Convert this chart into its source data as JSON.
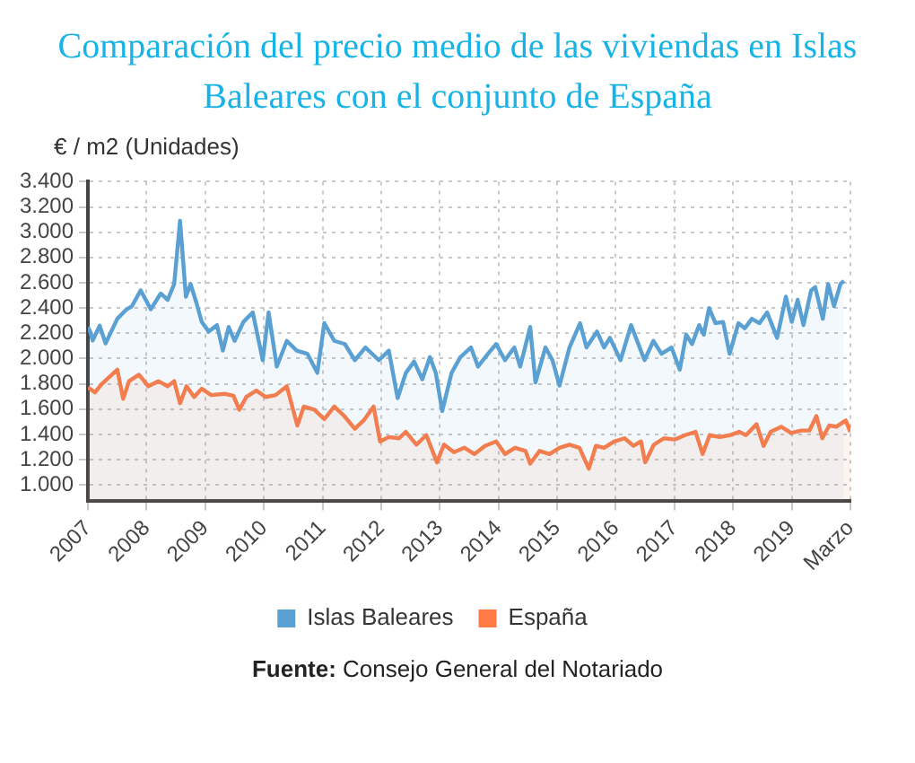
{
  "chart_data": {
    "type": "area",
    "title": "Comparación del precio medio de las viviendas en Islas Baleares con el conjunto de España",
    "ylabel": "€ / m2 (Unidades)",
    "annotations": [
      "Fuente: Consejo General del Notariado"
    ],
    "xlim": [
      2007,
      2020
    ],
    "xticks": [
      2007,
      2008,
      2009,
      2010,
      2011,
      2012,
      2013,
      2014,
      2015,
      2016,
      2017,
      2018,
      2019,
      {
        "value": 2020,
        "label": "Marzo"
      }
    ],
    "ylim": [
      870,
      3400
    ],
    "yticks": [
      {
        "value": 1000,
        "label": "1.000"
      },
      {
        "value": 1200,
        "label": "1.200"
      },
      {
        "value": 1400,
        "label": "1.400"
      },
      {
        "value": 1600,
        "label": "1.600"
      },
      {
        "value": 1800,
        "label": "1.800"
      },
      {
        "value": 2000,
        "label": "2.000"
      },
      {
        "value": 2200,
        "label": "2.200"
      },
      {
        "value": 2400,
        "label": "2.400"
      },
      {
        "value": 2600,
        "label": "2.600"
      },
      {
        "value": 2800,
        "label": "2.800"
      },
      {
        "value": 3000,
        "label": "3.000"
      },
      {
        "value": 3200,
        "label": "3.200"
      },
      {
        "value": 3400,
        "label": "3.400"
      }
    ],
    "grid": true,
    "legend": "bottom",
    "marker": "none",
    "line_style": "solid",
    "series": [
      {
        "name": "Islas Baleares",
        "color": "#5aa0d2",
        "x": [
          2007.0,
          2007.04,
          2007.08,
          2007.2,
          2007.3,
          2007.5,
          2007.66,
          2007.75,
          2007.9,
          2008.07,
          2008.24,
          2008.36,
          2008.47,
          2008.57,
          2008.67,
          2008.75,
          2008.85,
          2008.94,
          2009.06,
          2009.2,
          2009.3,
          2009.4,
          2009.5,
          2009.65,
          2009.81,
          2009.98,
          2010.08,
          2010.22,
          2010.39,
          2010.56,
          2010.74,
          2010.91,
          2011.03,
          2011.2,
          2011.38,
          2011.55,
          2011.73,
          2011.96,
          2012.13,
          2012.28,
          2012.42,
          2012.56,
          2012.7,
          2012.83,
          2012.93,
          2013.04,
          2013.2,
          2013.35,
          2013.53,
          2013.65,
          2013.82,
          2013.96,
          2014.11,
          2014.27,
          2014.37,
          2014.54,
          2014.63,
          2014.8,
          2014.92,
          2015.04,
          2015.21,
          2015.39,
          2015.5,
          2015.68,
          2015.8,
          2015.9,
          2016.08,
          2016.26,
          2016.49,
          2016.64,
          2016.78,
          2016.95,
          2017.09,
          2017.2,
          2017.3,
          2017.42,
          2017.5,
          2017.59,
          2017.7,
          2017.83,
          2017.94,
          2018.09,
          2018.2,
          2018.32,
          2018.45,
          2018.58,
          2018.75,
          2018.9,
          2019.0,
          2019.1,
          2019.2,
          2019.33,
          2019.4,
          2019.53,
          2019.62,
          2019.72,
          2019.83,
          2019.89
        ],
        "values": [
          2250,
          2210,
          2143,
          2260,
          2120,
          2315,
          2390,
          2415,
          2540,
          2390,
          2515,
          2465,
          2590,
          3090,
          2490,
          2590,
          2440,
          2290,
          2214,
          2265,
          2063,
          2250,
          2140,
          2290,
          2365,
          1987,
          2365,
          1937,
          2140,
          2063,
          2038,
          1887,
          2280,
          2140,
          2115,
          1987,
          2088,
          1987,
          2063,
          1686,
          1887,
          1977,
          1836,
          2012,
          1887,
          1585,
          1887,
          2012,
          2088,
          1937,
          2038,
          2115,
          1987,
          2088,
          1937,
          2250,
          1811,
          2088,
          1987,
          1786,
          2088,
          2280,
          2088,
          2214,
          2088,
          2164,
          1987,
          2265,
          1987,
          2140,
          2038,
          2088,
          1912,
          2190,
          2115,
          2265,
          2190,
          2400,
          2280,
          2290,
          2038,
          2280,
          2240,
          2315,
          2280,
          2365,
          2164,
          2490,
          2290,
          2465,
          2265,
          2540,
          2565,
          2315,
          2590,
          2415,
          2590,
          2615
        ]
      },
      {
        "name": "España",
        "color": "#ff7a45",
        "x": [
          2007.0,
          2007.12,
          2007.23,
          2007.5,
          2007.6,
          2007.7,
          2007.87,
          2008.03,
          2008.2,
          2008.36,
          2008.47,
          2008.57,
          2008.68,
          2008.81,
          2008.94,
          2009.1,
          2009.33,
          2009.48,
          2009.58,
          2009.7,
          2009.87,
          2010.03,
          2010.2,
          2010.39,
          2010.57,
          2010.68,
          2010.86,
          2011.03,
          2011.2,
          2011.37,
          2011.55,
          2011.7,
          2011.87,
          2011.98,
          2012.13,
          2012.3,
          2012.42,
          2012.6,
          2012.77,
          2012.95,
          2013.07,
          2013.24,
          2013.42,
          2013.59,
          2013.77,
          2013.96,
          2014.11,
          2014.28,
          2014.46,
          2014.54,
          2014.7,
          2014.87,
          2015.04,
          2015.21,
          2015.38,
          2015.54,
          2015.66,
          2015.8,
          2015.97,
          2016.15,
          2016.3,
          2016.43,
          2016.5,
          2016.65,
          2016.82,
          2017.0,
          2017.18,
          2017.36,
          2017.48,
          2017.6,
          2017.77,
          2017.95,
          2018.1,
          2018.22,
          2018.4,
          2018.52,
          2018.64,
          2018.82,
          2018.99,
          2019.16,
          2019.3,
          2019.42,
          2019.52,
          2019.64,
          2019.76,
          2019.92,
          2020.0
        ],
        "values": [
          1771,
          1732,
          1796,
          1912,
          1681,
          1821,
          1872,
          1781,
          1821,
          1781,
          1821,
          1646,
          1781,
          1696,
          1762,
          1711,
          1721,
          1706,
          1595,
          1696,
          1746,
          1696,
          1711,
          1781,
          1470,
          1620,
          1595,
          1520,
          1620,
          1545,
          1445,
          1510,
          1620,
          1344,
          1379,
          1369,
          1420,
          1319,
          1394,
          1178,
          1319,
          1259,
          1294,
          1244,
          1309,
          1344,
          1244,
          1294,
          1269,
          1168,
          1269,
          1244,
          1294,
          1319,
          1294,
          1128,
          1309,
          1294,
          1344,
          1369,
          1309,
          1344,
          1178,
          1319,
          1369,
          1359,
          1394,
          1420,
          1244,
          1394,
          1379,
          1394,
          1420,
          1394,
          1480,
          1309,
          1420,
          1460,
          1410,
          1430,
          1430,
          1545,
          1369,
          1470,
          1460,
          1510,
          1420
        ]
      }
    ]
  }
}
